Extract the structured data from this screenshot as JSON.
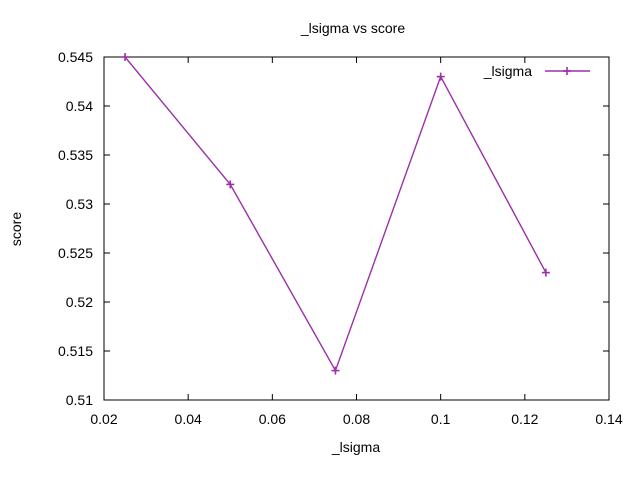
{
  "chart_data": {
    "type": "line",
    "title": "_lsigma vs score",
    "xlabel": "_lsigma",
    "ylabel": "score",
    "xlim": [
      0.02,
      0.14
    ],
    "ylim": [
      0.51,
      0.545
    ],
    "x_ticks": [
      "0.02",
      "0.04",
      "0.06",
      "0.08",
      "0.1",
      "0.12",
      "0.14"
    ],
    "y_ticks": [
      "0.51",
      "0.515",
      "0.52",
      "0.525",
      "0.53",
      "0.535",
      "0.54",
      "0.545"
    ],
    "grid": false,
    "legend_position": "top-right",
    "series": [
      {
        "name": "_lsigma",
        "color": "#9b30a8",
        "marker": "plus",
        "x": [
          0.025,
          0.05,
          0.075,
          0.1,
          0.125
        ],
        "y": [
          0.545,
          0.532,
          0.513,
          0.543,
          0.523
        ]
      }
    ]
  }
}
